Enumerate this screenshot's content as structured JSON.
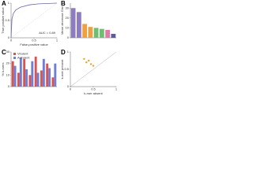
{
  "chart_data": [
    {
      "type": "line",
      "label": "A",
      "xlabel": "False-positive value",
      "ylabel": "True positive value",
      "annotation": "AUC = 0.89",
      "x": [
        0,
        0.02,
        0.05,
        0.1,
        0.2,
        0.4,
        0.6,
        1
      ],
      "values": [
        0,
        0.55,
        0.7,
        0.8,
        0.88,
        0.95,
        0.98,
        1
      ],
      "color": "#6a6aa8",
      "xlim": [
        0,
        1
      ],
      "ylim": [
        0,
        1
      ],
      "xticks": [
        0,
        0.5,
        1
      ],
      "yticks": [
        0,
        0.5,
        1
      ]
    },
    {
      "type": "bar",
      "label": "B",
      "ylabel": "Mean decrease Gini",
      "categories": [
        null,
        null,
        null,
        null,
        null,
        null,
        null,
        null
      ],
      "values": [
        30,
        26,
        14,
        11,
        10,
        9,
        8,
        4
      ],
      "colors": [
        "#8e7cc3",
        "#8e7cc3",
        "#f0a040",
        "#f0a040",
        "#6fbf73",
        "#6fbf73",
        "#e07aa8",
        "#5b5ba0"
      ],
      "ylim": [
        0,
        35
      ],
      "yticks": [
        0,
        10,
        20,
        30
      ]
    },
    {
      "type": "bar",
      "label": "C",
      "ylabel": "% k-mers",
      "categories": [
        null,
        null,
        null,
        null,
        null,
        null,
        null,
        null
      ],
      "series": [
        {
          "name": "Virulent",
          "color": "#d9534f",
          "values": [
            22,
            12,
            24,
            10,
            26,
            14,
            20,
            8
          ]
        },
        {
          "name": "Avirulent",
          "color": "#6f7fd6",
          "values": [
            18,
            25,
            15,
            22,
            12,
            24,
            16,
            20
          ]
        }
      ],
      "ylim": [
        0,
        30
      ],
      "yticks": [
        0,
        10,
        20,
        30
      ]
    },
    {
      "type": "scatter",
      "label": "D",
      "xlabel": "k-mer absent",
      "ylabel": "k-mer present",
      "x": [
        0.3,
        0.35,
        0.4,
        0.5,
        0.45
      ],
      "values": [
        0.8,
        0.7,
        0.75,
        0.6,
        0.65
      ],
      "color": "#f0a020",
      "xlim": [
        0,
        1
      ],
      "ylim": [
        0,
        1
      ],
      "xticks": [
        0,
        0.5,
        1
      ],
      "yticks": [
        0,
        0.5,
        1
      ]
    }
  ]
}
